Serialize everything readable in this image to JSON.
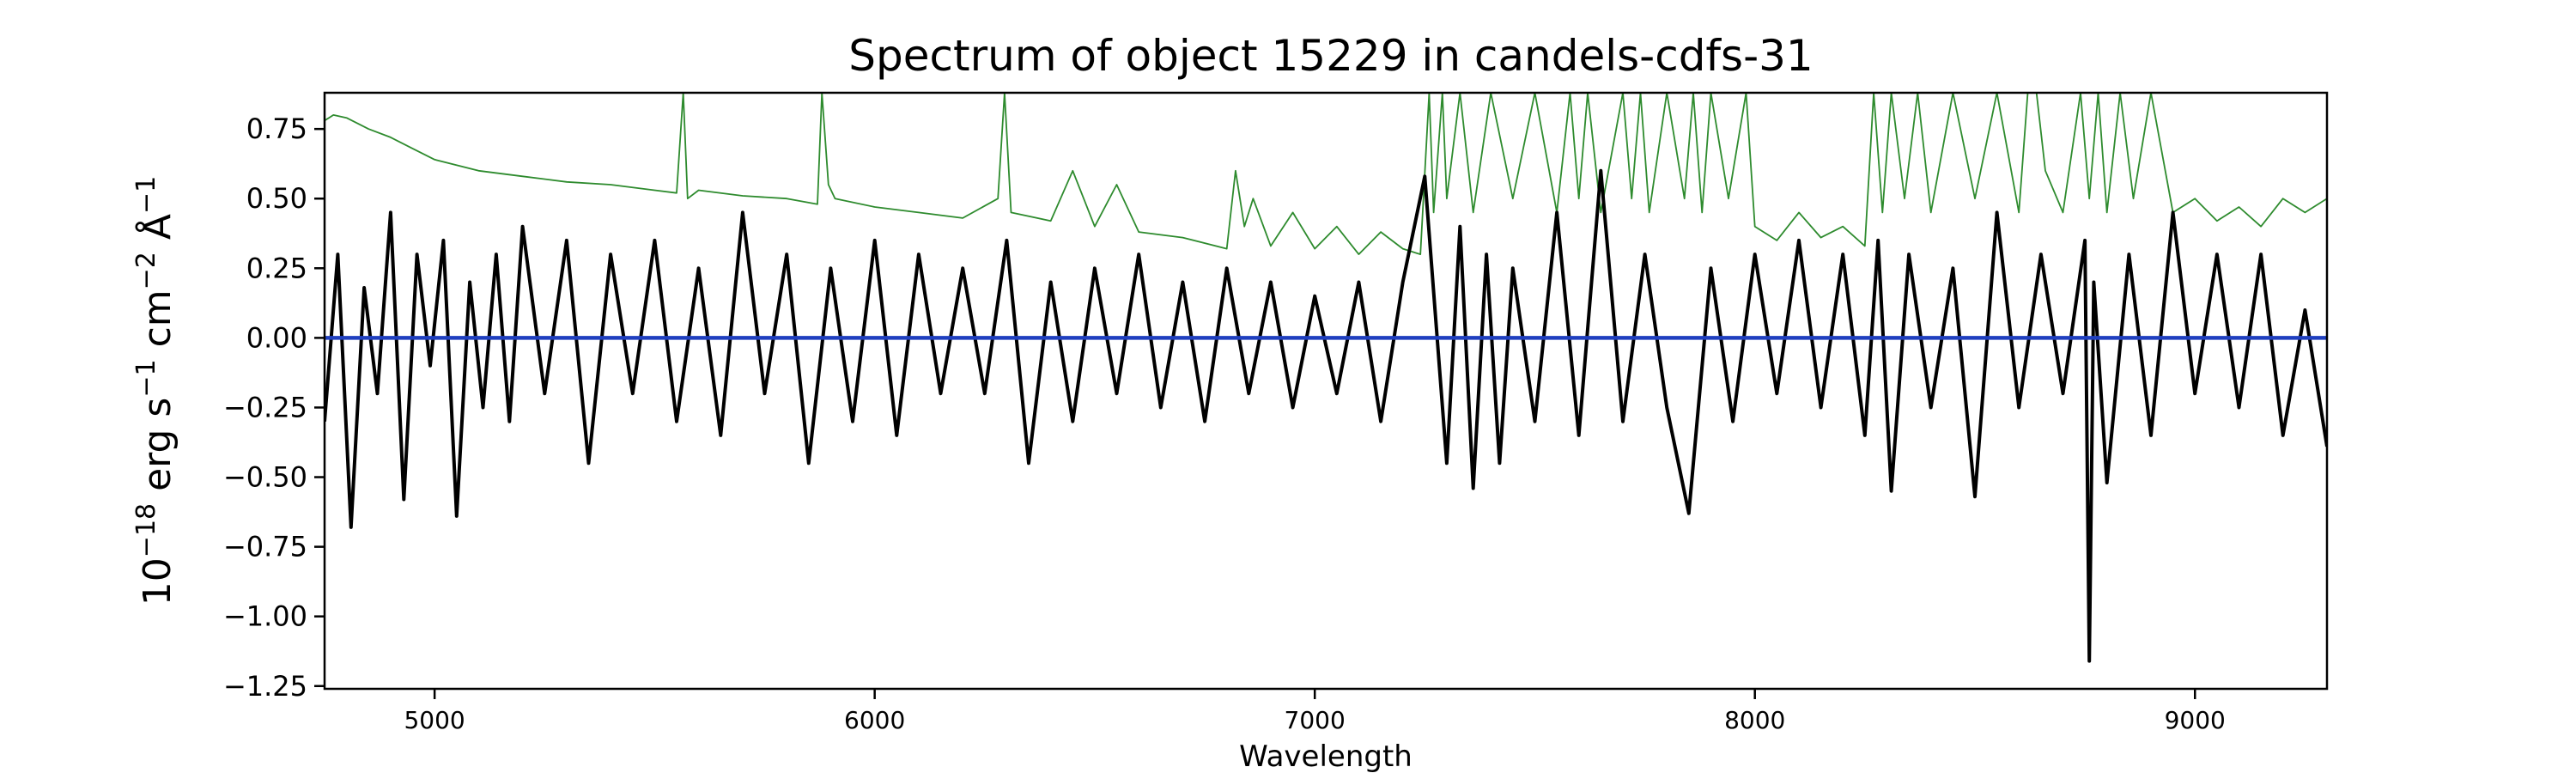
{
  "chart_data": {
    "type": "line",
    "title": "Spectrum of object 15229 in candels-cdfs-31",
    "xlabel": "Wavelength",
    "ylabel_parts": {
      "base": "10",
      "exp1": "−18",
      "erg": " erg s",
      "exp2": "−1",
      "cm": " cm",
      "exp3": "−2",
      "ang": " Å",
      "exp4": "−1"
    },
    "xlim": [
      4750,
      9300
    ],
    "ylim": [
      -1.26,
      0.88
    ],
    "xticks": [
      5000,
      6000,
      7000,
      8000,
      9000
    ],
    "xtick_labels": [
      "5000",
      "6000",
      "7000",
      "8000",
      "9000"
    ],
    "yticks": [
      -1.25,
      -1.0,
      -0.75,
      -0.5,
      -0.25,
      0.0,
      0.25,
      0.5,
      0.75
    ],
    "ytick_labels": [
      "−1.25",
      "−1.00",
      "−0.75",
      "−0.50",
      "−0.25",
      "0.00",
      "0.25",
      "0.50",
      "0.75"
    ],
    "grid": false,
    "legend": "none",
    "series": [
      {
        "role": "flux",
        "color": "#000000",
        "x": [
          4750,
          4780,
          4810,
          4840,
          4870,
          4900,
          4930,
          4960,
          4990,
          5020,
          5050,
          5080,
          5110,
          5140,
          5170,
          5200,
          5250,
          5300,
          5350,
          5400,
          5450,
          5500,
          5550,
          5600,
          5650,
          5700,
          5750,
          5800,
          5850,
          5900,
          5950,
          6000,
          6050,
          6100,
          6150,
          6200,
          6250,
          6300,
          6350,
          6400,
          6450,
          6500,
          6550,
          6600,
          6650,
          6700,
          6750,
          6800,
          6850,
          6900,
          6950,
          7000,
          7050,
          7100,
          7150,
          7200,
          7250,
          7300,
          7330,
          7360,
          7390,
          7420,
          7450,
          7500,
          7550,
          7600,
          7650,
          7700,
          7750,
          7800,
          7850,
          7900,
          7950,
          8000,
          8050,
          8100,
          8150,
          8200,
          8250,
          8280,
          8310,
          8350,
          8400,
          8450,
          8500,
          8550,
          8600,
          8650,
          8700,
          8750,
          8760,
          8770,
          8800,
          8850,
          8900,
          8950,
          9000,
          9050,
          9100,
          9150,
          9200,
          9250,
          9300
        ],
        "y": [
          -0.3,
          0.3,
          -0.68,
          0.18,
          -0.2,
          0.45,
          -0.58,
          0.3,
          -0.1,
          0.35,
          -0.64,
          0.2,
          -0.25,
          0.3,
          -0.3,
          0.4,
          -0.2,
          0.35,
          -0.45,
          0.3,
          -0.2,
          0.35,
          -0.3,
          0.25,
          -0.35,
          0.45,
          -0.2,
          0.3,
          -0.45,
          0.25,
          -0.3,
          0.35,
          -0.35,
          0.3,
          -0.2,
          0.25,
          -0.2,
          0.35,
          -0.45,
          0.2,
          -0.3,
          0.25,
          -0.2,
          0.3,
          -0.25,
          0.2,
          -0.3,
          0.25,
          -0.2,
          0.2,
          -0.25,
          0.15,
          -0.2,
          0.2,
          -0.3,
          0.2,
          0.58,
          -0.45,
          0.4,
          -0.54,
          0.3,
          -0.45,
          0.25,
          -0.3,
          0.45,
          -0.35,
          0.6,
          -0.3,
          0.3,
          -0.25,
          -0.63,
          0.25,
          -0.3,
          0.3,
          -0.2,
          0.35,
          -0.25,
          0.3,
          -0.35,
          0.35,
          -0.55,
          0.3,
          -0.25,
          0.25,
          -0.57,
          0.45,
          -0.25,
          0.3,
          -0.2,
          0.35,
          -1.16,
          0.2,
          -0.52,
          0.3,
          -0.35,
          0.45,
          -0.2,
          0.3,
          -0.25,
          0.3,
          -0.35,
          0.1,
          -0.39
        ]
      },
      {
        "role": "error",
        "color": "#2e8b2e",
        "x": [
          4750,
          4770,
          4800,
          4850,
          4900,
          4950,
          5000,
          5100,
          5200,
          5300,
          5400,
          5500,
          5550,
          5565,
          5575,
          5600,
          5700,
          5800,
          5870,
          5880,
          5895,
          5910,
          6000,
          6100,
          6200,
          6280,
          6295,
          6310,
          6400,
          6450,
          6500,
          6550,
          6600,
          6700,
          6800,
          6820,
          6840,
          6860,
          6900,
          6950,
          7000,
          7050,
          7100,
          7150,
          7200,
          7240,
          7260,
          7270,
          7290,
          7300,
          7330,
          7360,
          7400,
          7450,
          7500,
          7550,
          7580,
          7600,
          7620,
          7650,
          7700,
          7720,
          7740,
          7760,
          7800,
          7840,
          7860,
          7880,
          7900,
          7940,
          7980,
          8000,
          8050,
          8100,
          8150,
          8200,
          8250,
          8270,
          8290,
          8310,
          8340,
          8370,
          8400,
          8450,
          8500,
          8550,
          8600,
          8620,
          8640,
          8660,
          8700,
          8740,
          8760,
          8780,
          8800,
          8830,
          8860,
          8900,
          8950,
          9000,
          9050,
          9100,
          9150,
          9200,
          9250,
          9300
        ],
        "y": [
          0.78,
          0.8,
          0.79,
          0.75,
          0.72,
          0.68,
          0.64,
          0.6,
          0.58,
          0.56,
          0.55,
          0.53,
          0.52,
          0.88,
          0.5,
          0.53,
          0.51,
          0.5,
          0.48,
          0.88,
          0.55,
          0.5,
          0.47,
          0.45,
          0.43,
          0.5,
          0.88,
          0.45,
          0.42,
          0.6,
          0.4,
          0.55,
          0.38,
          0.36,
          0.32,
          0.6,
          0.4,
          0.5,
          0.33,
          0.45,
          0.32,
          0.4,
          0.3,
          0.38,
          0.32,
          0.3,
          0.88,
          0.45,
          0.88,
          0.5,
          0.88,
          0.45,
          0.88,
          0.5,
          0.88,
          0.45,
          0.88,
          0.5,
          0.88,
          0.45,
          0.88,
          0.5,
          0.88,
          0.45,
          0.88,
          0.5,
          0.88,
          0.45,
          0.88,
          0.5,
          0.88,
          0.4,
          0.35,
          0.45,
          0.36,
          0.4,
          0.33,
          0.88,
          0.45,
          0.88,
          0.5,
          0.88,
          0.45,
          0.88,
          0.5,
          0.88,
          0.45,
          0.88,
          0.88,
          0.6,
          0.45,
          0.88,
          0.5,
          0.88,
          0.45,
          0.88,
          0.5,
          0.88,
          0.45,
          0.5,
          0.42,
          0.47,
          0.4,
          0.5,
          0.45,
          0.5
        ]
      },
      {
        "role": "model",
        "color": "#1f3fbf",
        "x": [
          4750,
          9300
        ],
        "y": [
          0.0,
          0.0
        ]
      }
    ]
  }
}
